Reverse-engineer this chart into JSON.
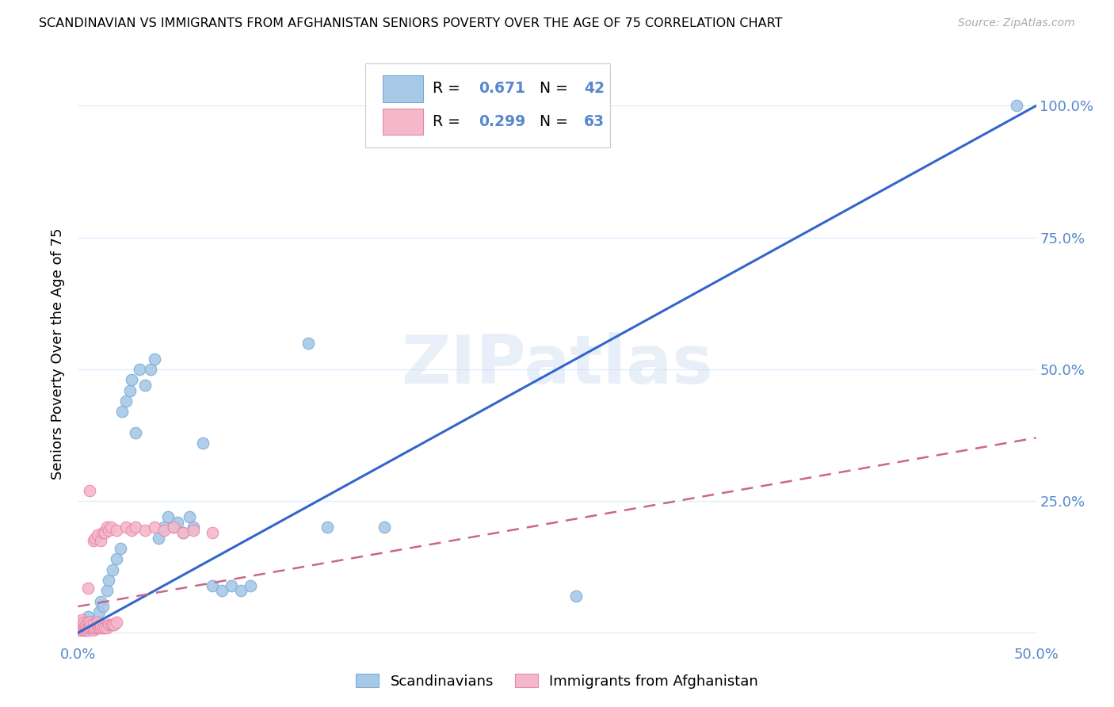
{
  "title": "SCANDINAVIAN VS IMMIGRANTS FROM AFGHANISTAN SENIORS POVERTY OVER THE AGE OF 75 CORRELATION CHART",
  "source": "Source: ZipAtlas.com",
  "ylabel": "Seniors Poverty Over the Age of 75",
  "xlim": [
    0.0,
    0.5
  ],
  "ylim": [
    -0.02,
    1.08
  ],
  "scandinavian_color": "#a8c8e8",
  "scandinavian_edge": "#7aadd4",
  "afghanistan_color": "#f5b8cb",
  "afghanistan_edge": "#e888a8",
  "trendline1_color": "#3366cc",
  "trendline2_color": "#cc6688",
  "watermark": "ZIPatlas",
  "background_color": "#ffffff",
  "grid_color": "#ddeeff",
  "tick_color": "#5588cc",
  "scandinavian_points": [
    [
      0.001,
      0.015
    ],
    [
      0.002,
      0.02
    ],
    [
      0.004,
      0.01
    ],
    [
      0.005,
      0.03
    ],
    [
      0.007,
      0.02
    ],
    [
      0.009,
      0.01
    ],
    [
      0.011,
      0.04
    ],
    [
      0.012,
      0.06
    ],
    [
      0.013,
      0.05
    ],
    [
      0.015,
      0.08
    ],
    [
      0.016,
      0.1
    ],
    [
      0.018,
      0.12
    ],
    [
      0.02,
      0.14
    ],
    [
      0.022,
      0.16
    ],
    [
      0.023,
      0.42
    ],
    [
      0.025,
      0.44
    ],
    [
      0.027,
      0.46
    ],
    [
      0.028,
      0.48
    ],
    [
      0.03,
      0.38
    ],
    [
      0.032,
      0.5
    ],
    [
      0.035,
      0.47
    ],
    [
      0.038,
      0.5
    ],
    [
      0.04,
      0.52
    ],
    [
      0.042,
      0.18
    ],
    [
      0.045,
      0.2
    ],
    [
      0.047,
      0.22
    ],
    [
      0.05,
      0.2
    ],
    [
      0.052,
      0.21
    ],
    [
      0.055,
      0.19
    ],
    [
      0.058,
      0.22
    ],
    [
      0.06,
      0.2
    ],
    [
      0.065,
      0.36
    ],
    [
      0.07,
      0.09
    ],
    [
      0.075,
      0.08
    ],
    [
      0.08,
      0.09
    ],
    [
      0.085,
      0.08
    ],
    [
      0.09,
      0.09
    ],
    [
      0.12,
      0.55
    ],
    [
      0.13,
      0.2
    ],
    [
      0.16,
      0.2
    ],
    [
      0.26,
      0.07
    ],
    [
      0.49,
      1.0
    ]
  ],
  "afghanistan_points": [
    [
      0.001,
      0.005
    ],
    [
      0.001,
      0.01
    ],
    [
      0.001,
      0.015
    ],
    [
      0.001,
      0.02
    ],
    [
      0.002,
      0.005
    ],
    [
      0.002,
      0.01
    ],
    [
      0.002,
      0.015
    ],
    [
      0.002,
      0.02
    ],
    [
      0.002,
      0.025
    ],
    [
      0.003,
      0.005
    ],
    [
      0.003,
      0.01
    ],
    [
      0.003,
      0.015
    ],
    [
      0.003,
      0.02
    ],
    [
      0.004,
      0.005
    ],
    [
      0.004,
      0.01
    ],
    [
      0.004,
      0.015
    ],
    [
      0.005,
      0.005
    ],
    [
      0.005,
      0.01
    ],
    [
      0.005,
      0.015
    ],
    [
      0.005,
      0.02
    ],
    [
      0.006,
      0.01
    ],
    [
      0.006,
      0.015
    ],
    [
      0.006,
      0.02
    ],
    [
      0.007,
      0.01
    ],
    [
      0.007,
      0.015
    ],
    [
      0.008,
      0.005
    ],
    [
      0.008,
      0.01
    ],
    [
      0.008,
      0.015
    ],
    [
      0.009,
      0.01
    ],
    [
      0.01,
      0.01
    ],
    [
      0.01,
      0.015
    ],
    [
      0.01,
      0.02
    ],
    [
      0.011,
      0.01
    ],
    [
      0.012,
      0.01
    ],
    [
      0.012,
      0.015
    ],
    [
      0.013,
      0.01
    ],
    [
      0.014,
      0.01
    ],
    [
      0.015,
      0.01
    ],
    [
      0.016,
      0.015
    ],
    [
      0.017,
      0.015
    ],
    [
      0.018,
      0.015
    ],
    [
      0.019,
      0.015
    ],
    [
      0.02,
      0.02
    ],
    [
      0.005,
      0.085
    ],
    [
      0.006,
      0.27
    ],
    [
      0.008,
      0.175
    ],
    [
      0.009,
      0.18
    ],
    [
      0.01,
      0.185
    ],
    [
      0.012,
      0.175
    ],
    [
      0.013,
      0.19
    ],
    [
      0.014,
      0.19
    ],
    [
      0.015,
      0.2
    ],
    [
      0.016,
      0.195
    ],
    [
      0.017,
      0.2
    ],
    [
      0.02,
      0.195
    ],
    [
      0.025,
      0.2
    ],
    [
      0.028,
      0.195
    ],
    [
      0.03,
      0.2
    ],
    [
      0.035,
      0.195
    ],
    [
      0.04,
      0.2
    ],
    [
      0.045,
      0.195
    ],
    [
      0.05,
      0.2
    ],
    [
      0.055,
      0.19
    ],
    [
      0.06,
      0.195
    ],
    [
      0.07,
      0.19
    ]
  ],
  "trendline1_x": [
    0.0,
    0.5
  ],
  "trendline1_y": [
    0.0,
    1.0
  ],
  "trendline2_x": [
    0.0,
    0.5
  ],
  "trendline2_y": [
    0.05,
    0.37
  ]
}
